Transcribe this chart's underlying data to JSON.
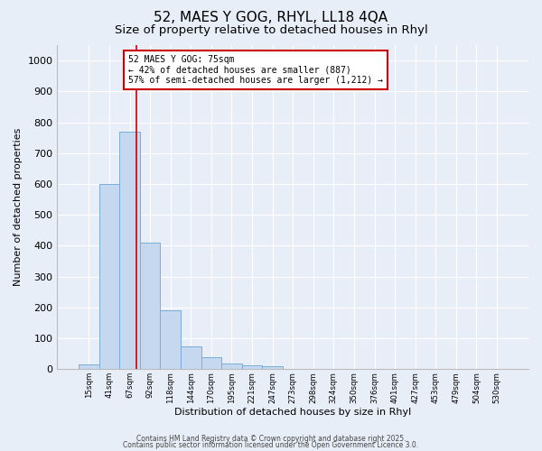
{
  "title1": "52, MAES Y GOG, RHYL, LL18 4QA",
  "title2": "Size of property relative to detached houses in Rhyl",
  "xlabel": "Distribution of detached houses by size in Rhyl",
  "ylabel": "Number of detached properties",
  "bar_labels": [
    "15sqm",
    "41sqm",
    "67sqm",
    "92sqm",
    "118sqm",
    "144sqm",
    "170sqm",
    "195sqm",
    "221sqm",
    "247sqm",
    "273sqm",
    "298sqm",
    "324sqm",
    "350sqm",
    "376sqm",
    "401sqm",
    "427sqm",
    "453sqm",
    "479sqm",
    "504sqm",
    "530sqm"
  ],
  "bar_values": [
    15,
    600,
    770,
    410,
    190,
    75,
    38,
    18,
    13,
    10,
    0,
    0,
    0,
    0,
    0,
    0,
    0,
    0,
    0,
    0,
    0
  ],
  "bar_color": "#c5d8f0",
  "bar_edge_color": "#7aaed6",
  "annotation_text": "52 MAES Y GOG: 75sqm\n← 42% of detached houses are smaller (887)\n57% of semi-detached houses are larger (1,212) →",
  "annotation_box_color": "#ffffff",
  "annotation_border_color": "#cc0000",
  "ylim": [
    0,
    1050
  ],
  "yticks": [
    0,
    100,
    200,
    300,
    400,
    500,
    600,
    700,
    800,
    900,
    1000
  ],
  "background_color": "#e8eef7",
  "grid_color": "#ffffff",
  "footer_line1": "Contains HM Land Registry data © Crown copyright and database right 2025.",
  "footer_line2": "Contains public sector information licensed under the Open Government Licence 3.0.",
  "title_fontsize": 11,
  "subtitle_fontsize": 9.5
}
